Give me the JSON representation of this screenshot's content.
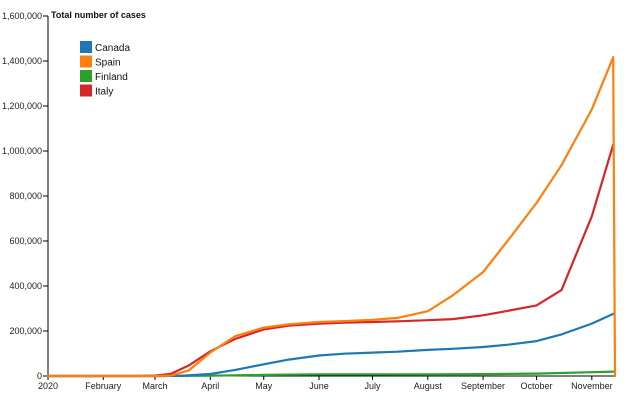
{
  "chart_data": {
    "type": "line",
    "title": "Total number of cases",
    "ylim": [
      0,
      1600000
    ],
    "y_ticks": [
      {
        "value": 0,
        "label": "0"
      },
      {
        "value": 200000,
        "label": "200,000"
      },
      {
        "value": 400000,
        "label": "400,000"
      },
      {
        "value": 600000,
        "label": "600,000"
      },
      {
        "value": 800000,
        "label": "800,000"
      },
      {
        "value": 1000000,
        "label": "1,000,000"
      },
      {
        "value": 1200000,
        "label": "1,200,000"
      },
      {
        "value": 1400000,
        "label": "1,400,000"
      },
      {
        "value": 1600000,
        "label": "1,600,000"
      }
    ],
    "x_ticks": [
      {
        "date": "2020-01-01",
        "label": "2020"
      },
      {
        "date": "2020-02-01",
        "label": "February"
      },
      {
        "date": "2020-03-01",
        "label": "March"
      },
      {
        "date": "2020-04-01",
        "label": "April"
      },
      {
        "date": "2020-05-01",
        "label": "May"
      },
      {
        "date": "2020-06-01",
        "label": "June"
      },
      {
        "date": "2020-07-01",
        "label": "July"
      },
      {
        "date": "2020-08-01",
        "label": "August"
      },
      {
        "date": "2020-09-01",
        "label": "September"
      },
      {
        "date": "2020-10-01",
        "label": "October"
      },
      {
        "date": "2020-11-01",
        "label": "November"
      }
    ],
    "xlim": [
      "2020-01-01",
      "2020-11-14"
    ],
    "legend_position": "top-left",
    "grid": false,
    "series": [
      {
        "name": "Canada",
        "color": "#1f77b4",
        "points": [
          [
            "2020-01-01",
            0
          ],
          [
            "2020-03-01",
            0
          ],
          [
            "2020-03-15",
            300
          ],
          [
            "2020-04-01",
            9000
          ],
          [
            "2020-04-15",
            27000
          ],
          [
            "2020-05-01",
            52000
          ],
          [
            "2020-05-15",
            73000
          ],
          [
            "2020-06-01",
            91000
          ],
          [
            "2020-06-15",
            99000
          ],
          [
            "2020-07-01",
            104000
          ],
          [
            "2020-07-15",
            108000
          ],
          [
            "2020-08-01",
            116000
          ],
          [
            "2020-08-15",
            121000
          ],
          [
            "2020-09-01",
            129000
          ],
          [
            "2020-09-15",
            139000
          ],
          [
            "2020-10-01",
            155000
          ],
          [
            "2020-10-15",
            185000
          ],
          [
            "2020-11-01",
            233000
          ],
          [
            "2020-11-13",
            276000
          ]
        ]
      },
      {
        "name": "Spain",
        "color": "#ff7f0e",
        "points": [
          [
            "2020-01-01",
            0
          ],
          [
            "2020-03-01",
            100
          ],
          [
            "2020-03-10",
            2000
          ],
          [
            "2020-03-20",
            25000
          ],
          [
            "2020-04-01",
            104000
          ],
          [
            "2020-04-15",
            177000
          ],
          [
            "2020-05-01",
            215000
          ],
          [
            "2020-05-15",
            230000
          ],
          [
            "2020-06-01",
            240000
          ],
          [
            "2020-06-15",
            244000
          ],
          [
            "2020-07-01",
            250000
          ],
          [
            "2020-07-15",
            258000
          ],
          [
            "2020-08-01",
            288000
          ],
          [
            "2020-08-15",
            358000
          ],
          [
            "2020-09-01",
            462000
          ],
          [
            "2020-09-15",
            603000
          ],
          [
            "2020-10-01",
            769000
          ],
          [
            "2020-10-15",
            937000
          ],
          [
            "2020-11-01",
            1185000
          ],
          [
            "2020-11-13",
            1417000
          ],
          [
            "2020-11-14",
            0
          ]
        ]
      },
      {
        "name": "Finland",
        "color": "#2ca02c",
        "points": [
          [
            "2020-01-01",
            0
          ],
          [
            "2020-03-01",
            0
          ],
          [
            "2020-04-01",
            1500
          ],
          [
            "2020-05-01",
            5000
          ],
          [
            "2020-06-01",
            6900
          ],
          [
            "2020-07-01",
            7200
          ],
          [
            "2020-08-01",
            7600
          ],
          [
            "2020-09-01",
            8300
          ],
          [
            "2020-10-01",
            10500
          ],
          [
            "2020-11-01",
            17000
          ],
          [
            "2020-11-13",
            19500
          ]
        ]
      },
      {
        "name": "Italy",
        "color": "#d62728",
        "points": [
          [
            "2020-01-01",
            0
          ],
          [
            "2020-02-20",
            0
          ],
          [
            "2020-03-01",
            1700
          ],
          [
            "2020-03-10",
            10000
          ],
          [
            "2020-03-20",
            47000
          ],
          [
            "2020-04-01",
            110000
          ],
          [
            "2020-04-15",
            165000
          ],
          [
            "2020-05-01",
            207000
          ],
          [
            "2020-05-15",
            224000
          ],
          [
            "2020-06-01",
            233000
          ],
          [
            "2020-06-15",
            237000
          ],
          [
            "2020-07-01",
            240000
          ],
          [
            "2020-07-15",
            243000
          ],
          [
            "2020-08-01",
            248000
          ],
          [
            "2020-08-15",
            253000
          ],
          [
            "2020-09-01",
            270000
          ],
          [
            "2020-09-15",
            290000
          ],
          [
            "2020-10-01",
            314000
          ],
          [
            "2020-10-15",
            382000
          ],
          [
            "2020-11-01",
            710000
          ],
          [
            "2020-11-13",
            1028000
          ]
        ]
      }
    ]
  }
}
